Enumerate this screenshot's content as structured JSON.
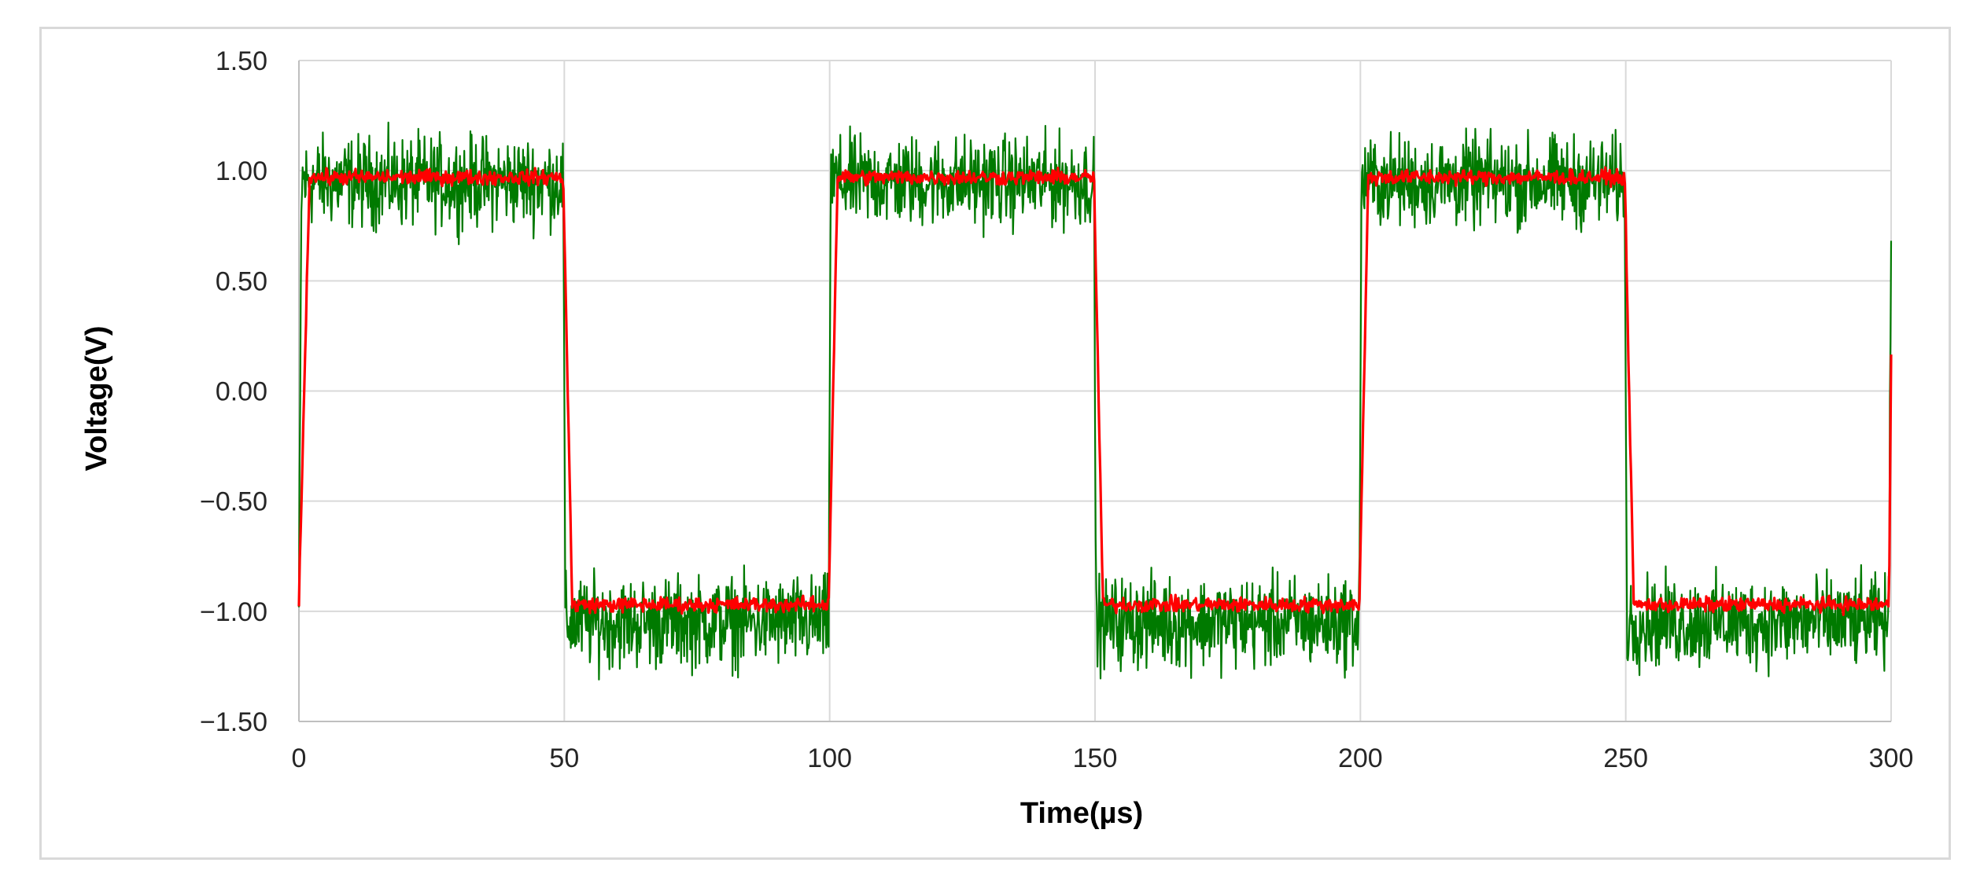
{
  "chart_data": {
    "type": "line",
    "title": "",
    "xlabel": "Time(µs)",
    "ylabel": "Voltage(V)",
    "xlim": [
      0,
      300
    ],
    "ylim": [
      -1.5,
      1.5
    ],
    "x_ticks": [
      "0",
      "50",
      "100",
      "150",
      "200",
      "250",
      "300"
    ],
    "y_ticks": [
      "1.50",
      "1.00",
      "0.50",
      "0.00",
      "−0.50",
      "−1.00",
      "−1.50"
    ],
    "grid": true,
    "legend": "none",
    "series": [
      {
        "color": "#007a00",
        "description": "noisy square wave",
        "x": [
          0,
          0.5,
          49.8,
          50.2,
          99.8,
          100.2,
          149.8,
          150.2,
          199.8,
          200.2,
          249.8,
          250.2,
          299.6,
          300
        ],
        "y": [
          -1.0,
          0.95,
          0.95,
          -1.05,
          -1.05,
          0.95,
          0.95,
          -1.05,
          -1.05,
          0.95,
          0.95,
          -1.05,
          -1.05,
          0.9
        ],
        "noise_amplitude": 0.3
      },
      {
        "color": "#ff0000",
        "description": "filtered square wave",
        "x": [
          0,
          2,
          49.8,
          51.5,
          99.8,
          101.5,
          149.8,
          151.5,
          199.8,
          201.5,
          249.8,
          251.5,
          299.6,
          300
        ],
        "y": [
          -0.95,
          0.97,
          0.97,
          -0.97,
          -0.97,
          0.97,
          0.97,
          -0.97,
          -0.97,
          0.97,
          0.97,
          -0.97,
          -0.97,
          0.15
        ],
        "noise_amplitude": 0.05
      }
    ]
  }
}
